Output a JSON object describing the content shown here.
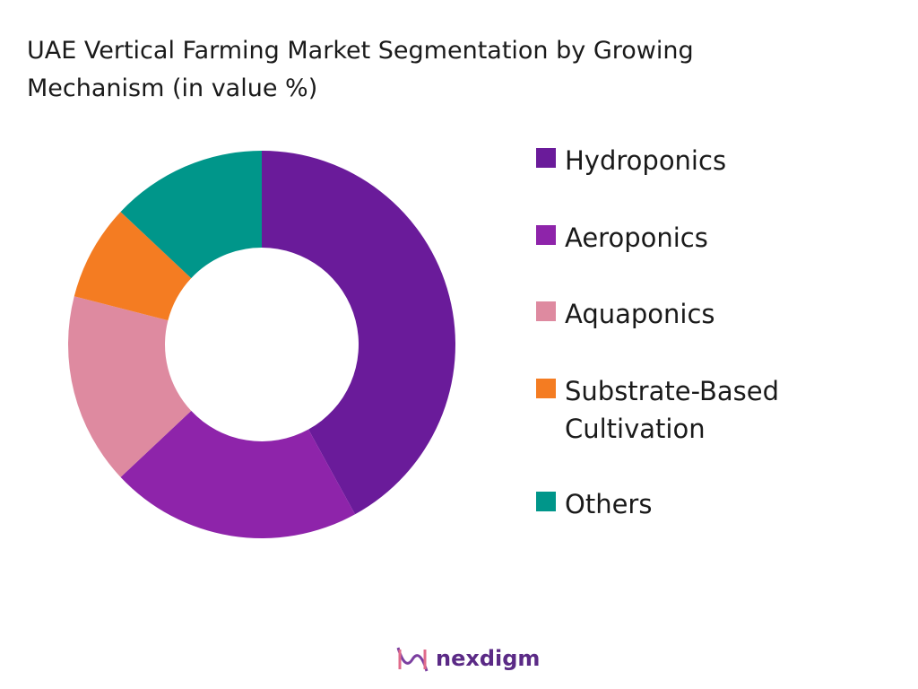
{
  "chart_data": {
    "type": "pie",
    "title": "UAE Vertical Farming Market Segmentation by Growing Mechanism (in value %)",
    "categories": [
      "Hydroponics",
      "Aeroponics",
      "Aquaponics",
      "Substrate-Based Cultivation",
      "Others"
    ],
    "values": [
      42,
      21,
      16,
      8,
      13
    ],
    "colors": [
      "#6a1b9a",
      "#8e24aa",
      "#de8aa0",
      "#f47c22",
      "#00968a"
    ],
    "donut": true
  },
  "brand": "nexdigm"
}
